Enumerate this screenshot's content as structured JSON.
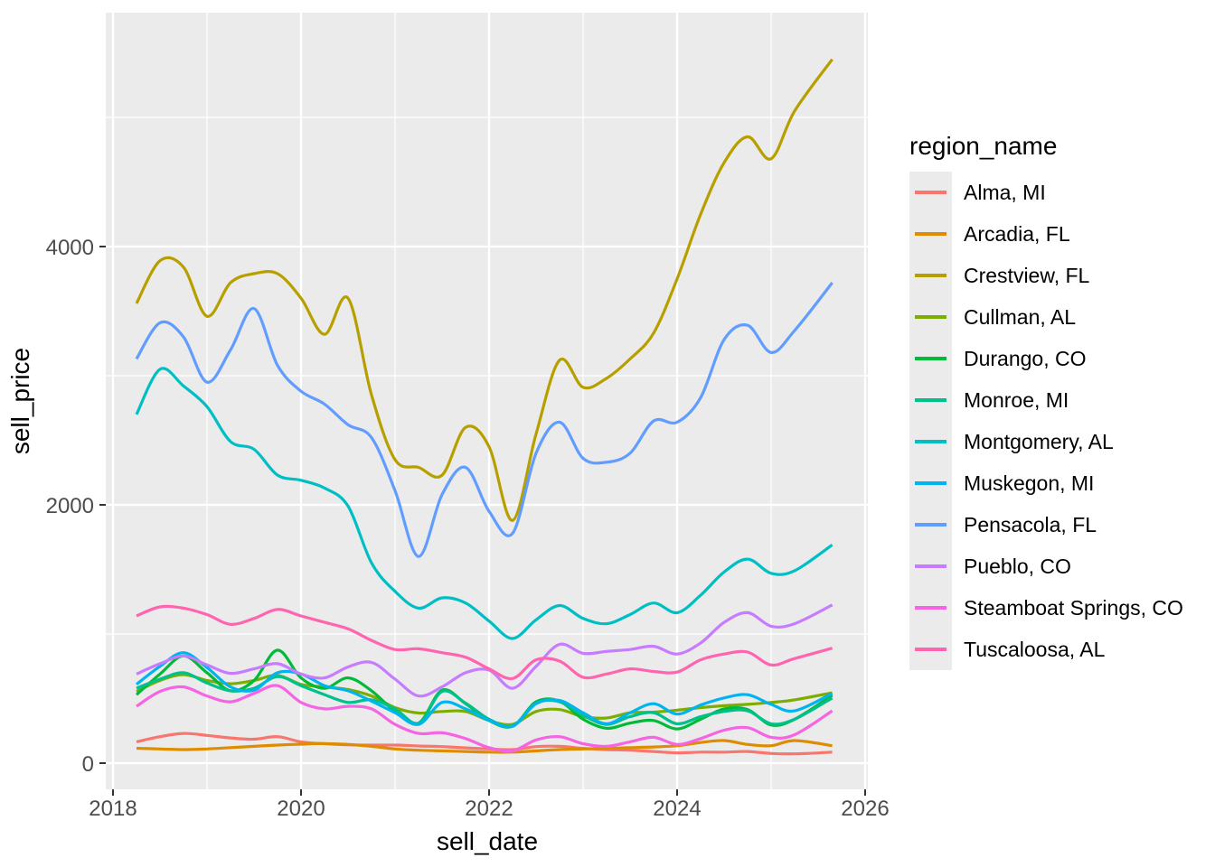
{
  "chart_data": {
    "type": "line",
    "title": "",
    "xlabel": "sell_date",
    "ylabel": "sell_price",
    "legend_title": "region_name",
    "legend_position": "right",
    "grid": "on",
    "panel_bg": "#EBEBEB",
    "grid_color": "#FFFFFF",
    "tick_color": "#333333",
    "tick_label_color": "#4D4D4D",
    "x_axis": {
      "ticks": [
        2018,
        2020,
        2022,
        2024,
        2026
      ],
      "tick_labels": [
        "2018",
        "2020",
        "2022",
        "2024",
        "2026"
      ],
      "minor_ticks": [
        2019,
        2021,
        2023,
        2025
      ],
      "range": [
        2017.92,
        2026.03
      ]
    },
    "y_axis": {
      "ticks": [
        0,
        2000,
        4000
      ],
      "tick_labels": [
        "0",
        "2000",
        "4000"
      ],
      "minor_ticks": [
        1000,
        3000,
        5000
      ],
      "range": [
        -210,
        5810
      ]
    },
    "x": [
      2018.25,
      2018.5,
      2018.75,
      2019,
      2019.25,
      2019.5,
      2019.75,
      2020,
      2020.25,
      2020.5,
      2020.75,
      2021,
      2021.25,
      2021.5,
      2021.75,
      2022,
      2022.25,
      2022.5,
      2022.75,
      2023,
      2023.25,
      2023.5,
      2023.75,
      2024,
      2024.25,
      2024.5,
      2024.75,
      2025,
      2025.25,
      2025.65
    ],
    "series": [
      {
        "name": "Alma, MI",
        "color": "#F8766D",
        "values": [
          165,
          205,
          230,
          215,
          195,
          185,
          205,
          165,
          150,
          142,
          140,
          140,
          133,
          128,
          118,
          110,
          105,
          128,
          130,
          115,
          105,
          100,
          90,
          80,
          85,
          85,
          90,
          75,
          72,
          85
        ]
      },
      {
        "name": "Arcadia, FL",
        "color": "#DE8C00",
        "values": [
          115,
          110,
          105,
          110,
          120,
          130,
          140,
          147,
          152,
          145,
          130,
          110,
          100,
          95,
          90,
          85,
          85,
          95,
          105,
          110,
          115,
          120,
          125,
          135,
          160,
          175,
          145,
          135,
          175,
          135
        ]
      },
      {
        "name": "Crestview, FL",
        "color": "#B79F00",
        "values": [
          3560,
          3890,
          3840,
          3460,
          3720,
          3790,
          3790,
          3600,
          3320,
          3600,
          2850,
          2350,
          2290,
          2230,
          2600,
          2450,
          1880,
          2550,
          3120,
          2910,
          2980,
          3130,
          3330,
          3750,
          4250,
          4650,
          4850,
          4680,
          5050,
          5450
        ]
      },
      {
        "name": "Cullman, AL",
        "color": "#7CAE00",
        "values": [
          555,
          640,
          685,
          640,
          615,
          640,
          680,
          610,
          590,
          570,
          520,
          430,
          388,
          400,
          400,
          330,
          300,
          400,
          415,
          360,
          350,
          390,
          395,
          410,
          430,
          445,
          455,
          470,
          490,
          545
        ]
      },
      {
        "name": "Durango, CO",
        "color": "#00BA38",
        "values": [
          530,
          690,
          830,
          700,
          560,
          640,
          875,
          660,
          580,
          660,
          560,
          400,
          310,
          565,
          460,
          330,
          285,
          475,
          480,
          340,
          270,
          310,
          330,
          265,
          340,
          420,
          415,
          295,
          340,
          525
        ]
      },
      {
        "name": "Monroe, MI",
        "color": "#00C08B",
        "values": [
          580,
          650,
          700,
          620,
          560,
          580,
          670,
          600,
          530,
          470,
          490,
          420,
          310,
          555,
          465,
          340,
          290,
          465,
          475,
          370,
          300,
          360,
          390,
          305,
          360,
          400,
          405,
          305,
          340,
          505
        ]
      },
      {
        "name": "Montgomery, AL",
        "color": "#00BFC4",
        "values": [
          2700,
          3050,
          2920,
          2760,
          2490,
          2430,
          2230,
          2190,
          2130,
          1990,
          1550,
          1330,
          1200,
          1280,
          1240,
          1100,
          965,
          1110,
          1220,
          1120,
          1080,
          1150,
          1240,
          1165,
          1300,
          1480,
          1580,
          1470,
          1490,
          1690
        ]
      },
      {
        "name": "Muskegon, MI",
        "color": "#00B4F0",
        "values": [
          610,
          750,
          855,
          740,
          590,
          565,
          700,
          690,
          600,
          560,
          480,
          390,
          300,
          470,
          420,
          330,
          285,
          460,
          485,
          390,
          305,
          390,
          460,
          380,
          450,
          505,
          530,
          455,
          405,
          540
        ]
      },
      {
        "name": "Pensacola, FL",
        "color": "#619CFF",
        "values": [
          3130,
          3410,
          3300,
          2950,
          3200,
          3520,
          3080,
          2880,
          2780,
          2620,
          2520,
          2110,
          1600,
          2080,
          2290,
          1950,
          1780,
          2400,
          2640,
          2360,
          2330,
          2400,
          2650,
          2640,
          2830,
          3280,
          3390,
          3180,
          3350,
          3720
        ]
      },
      {
        "name": "Pueblo, CO",
        "color": "#C77CFF",
        "values": [
          690,
          770,
          830,
          760,
          695,
          730,
          770,
          690,
          660,
          745,
          780,
          650,
          520,
          590,
          700,
          720,
          580,
          750,
          920,
          850,
          865,
          880,
          905,
          845,
          930,
          1090,
          1165,
          1060,
          1080,
          1225
        ]
      },
      {
        "name": "Steamboat Springs, CO",
        "color": "#F564E3",
        "values": [
          440,
          555,
          590,
          520,
          475,
          540,
          600,
          470,
          420,
          440,
          420,
          300,
          230,
          235,
          190,
          120,
          95,
          180,
          205,
          150,
          130,
          165,
          200,
          145,
          190,
          255,
          275,
          200,
          220,
          405
        ]
      },
      {
        "name": "Tuscaloosa, AL",
        "color": "#FF64B0",
        "values": [
          1140,
          1210,
          1200,
          1150,
          1075,
          1120,
          1190,
          1140,
          1090,
          1040,
          950,
          880,
          885,
          855,
          820,
          730,
          655,
          800,
          790,
          665,
          690,
          730,
          710,
          705,
          800,
          845,
          860,
          760,
          810,
          890
        ]
      }
    ]
  }
}
